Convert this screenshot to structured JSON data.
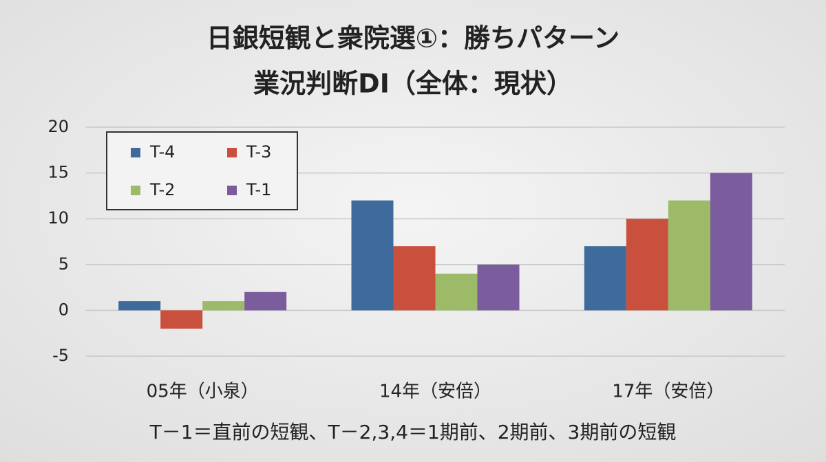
{
  "chart_data": {
    "type": "bar",
    "title": "日銀短観と衆院選①：勝ちパターン",
    "subtitle": "業況判断DI（全体：現状）",
    "categories": [
      "05年（小泉）",
      "14年（安倍）",
      "17年（安倍）"
    ],
    "series": [
      {
        "name": "T-4",
        "color": "#3e6b9c",
        "values": [
          1,
          12,
          7
        ]
      },
      {
        "name": "T-3",
        "color": "#c9503d",
        "values": [
          -2,
          7,
          10
        ]
      },
      {
        "name": "T-2",
        "color": "#9cba68",
        "values": [
          1,
          4,
          12
        ]
      },
      {
        "name": "T-1",
        "color": "#7b5c9c",
        "values": [
          2,
          5,
          15
        ]
      }
    ],
    "ylim": [
      -5,
      20
    ],
    "yticks": [
      -5,
      0,
      5,
      10,
      15,
      20
    ],
    "grid": true,
    "legend": "upper-left",
    "annotation": "T－1＝直前の短観、T－2,3,4＝1期前、2期前、3期前の短観"
  }
}
